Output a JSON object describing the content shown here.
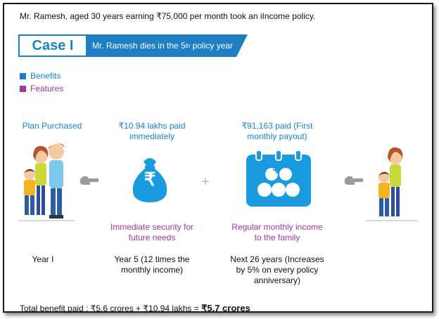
{
  "intro": "Mr. Ramesh, aged 30 years earning ₹75,000 per month took an iIncome policy.",
  "case": {
    "label": "Case I",
    "banner_main": "Mr. Ramesh dies in the 5",
    "banner_sup": "th",
    "banner_rest": " policy year"
  },
  "legend": [
    {
      "label": "Benefits",
      "color": "#1f7fc5"
    },
    {
      "label": "Features",
      "color": "#9b3a9e"
    }
  ],
  "columns": [
    {
      "top": "Plan Purchased",
      "bottom": "Year I"
    },
    {
      "top": "₹10.94 lakhs paid immediately",
      "feature": "Immediate security for future needs",
      "bottom": "Year 5 (12 times the monthly income)"
    },
    {
      "top": "₹91,163 paid (First monthly payout)",
      "feature": "Regular monthly income to the family",
      "bottom": "Next 26 years (Increases by 5% on every policy anniversary)"
    }
  ],
  "icons": {
    "money_bag_symbol": "₹",
    "calendar_symbol": "₹"
  },
  "plus_sign": "+",
  "total": {
    "prefix": "Total benefit paid : ₹5.6 crores + ₹10.94 lakhs = ",
    "emphasis": "₹5.7 crores"
  }
}
